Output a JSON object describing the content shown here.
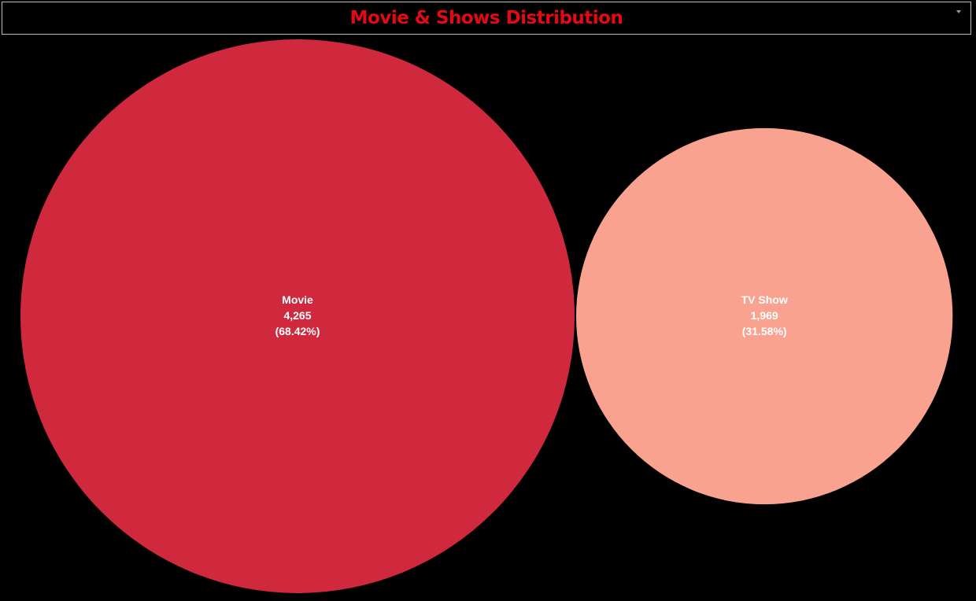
{
  "title": "Movie & Shows Distribution",
  "colors": {
    "title": "#e50914",
    "label_text": "#ffffff"
  },
  "chart_data": {
    "type": "bubble",
    "items": [
      {
        "label": "Movie",
        "value": 4265,
        "value_text": "4,265",
        "percent": 68.42,
        "percent_text": "(68.42%)",
        "color": "#d0293d"
      },
      {
        "label": "TV Show",
        "value": 1969,
        "value_text": "1,969",
        "percent": 31.58,
        "percent_text": "(31.58%)",
        "color": "#f9a290"
      }
    ]
  }
}
